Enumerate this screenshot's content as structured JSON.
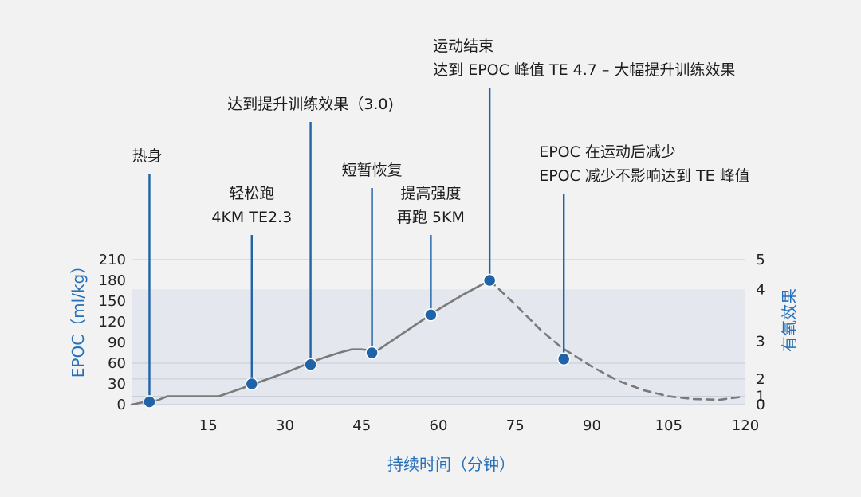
{
  "colors": {
    "background": "#f2f2f2",
    "shade": "#e4e8ee",
    "grid": "#c3ccd6",
    "curve": "#7a7a7a",
    "marker": "#1f63a8",
    "axis_title": "#2570b8",
    "text": "#222222"
  },
  "chart_data": {
    "type": "line",
    "xlabel": "持续时间（分钟）",
    "ylabel": "EPOC（ml/kg）",
    "y2label": "有氧效果",
    "xlim": [
      0,
      120
    ],
    "ylim": [
      0,
      210
    ],
    "x_ticks": [
      15,
      30,
      45,
      60,
      75,
      90,
      105,
      120
    ],
    "y_ticks": [
      0,
      30,
      60,
      90,
      120,
      150,
      180,
      210
    ],
    "y2_ticks": [
      {
        "label": "0",
        "epoc": 0
      },
      {
        "label": "1",
        "epoc": 12
      },
      {
        "label": "2",
        "epoc": 37
      },
      {
        "label": "3",
        "epoc": 92
      },
      {
        "label": "4",
        "epoc": 167
      },
      {
        "label": "5",
        "epoc": 210
      }
    ],
    "shaded_region": {
      "x_from": 0,
      "x_to": 120,
      "epoc_top": 167
    },
    "series": [
      {
        "style": "solid",
        "points": [
          [
            0,
            0
          ],
          [
            2,
            3
          ],
          [
            5,
            6
          ],
          [
            7,
            12
          ],
          [
            10,
            12
          ],
          [
            15,
            12
          ],
          [
            17,
            12
          ],
          [
            19,
            17
          ],
          [
            24,
            30
          ],
          [
            30,
            46
          ],
          [
            35,
            61
          ],
          [
            38,
            69
          ],
          [
            41,
            76
          ],
          [
            43,
            80
          ],
          [
            45,
            80
          ],
          [
            46,
            79
          ],
          [
            47,
            75
          ],
          [
            48,
            78
          ],
          [
            50,
            88
          ],
          [
            55,
            113
          ],
          [
            58,
            128
          ],
          [
            60,
            138
          ],
          [
            65,
            160
          ],
          [
            70,
            180
          ]
        ]
      },
      {
        "style": "dashed",
        "points": [
          [
            70,
            180
          ],
          [
            75,
            145
          ],
          [
            80,
            108
          ],
          [
            84,
            83
          ],
          [
            90,
            55
          ],
          [
            95,
            35
          ],
          [
            100,
            21
          ],
          [
            105,
            12
          ],
          [
            110,
            8
          ],
          [
            115,
            7
          ],
          [
            119,
            11
          ]
        ]
      }
    ],
    "events": [
      {
        "x": 3.5,
        "epoc": 4,
        "top": 218,
        "label_lines": [
          "热身"
        ]
      },
      {
        "x": 23.5,
        "epoc": 30,
        "top": 295,
        "label_lines": [
          "轻松跑",
          "4KM TE2.3"
        ]
      },
      {
        "x": 35,
        "epoc": 58,
        "top": 153,
        "label_lines": [
          "达到提升训练效果（3.0)"
        ]
      },
      {
        "x": 47,
        "epoc": 75,
        "top": 236,
        "label_lines": [
          "短暂恢复"
        ]
      },
      {
        "x": 58.5,
        "epoc": 130,
        "top": 295,
        "label_lines": [
          "提高强度",
          "再跑 5KM"
        ]
      },
      {
        "x": 70,
        "epoc": 180,
        "top": 110,
        "label_lines": [
          "运动结束",
          "达到 EPOC 峰值 TE 4.7 – 大幅提升训练效果"
        ]
      },
      {
        "x": 84.5,
        "epoc": 66,
        "top": 243,
        "label_lines": [
          "EPOC 在运动后减少",
          "EPOC 减少不影响达到 TE 峰值"
        ]
      }
    ]
  }
}
